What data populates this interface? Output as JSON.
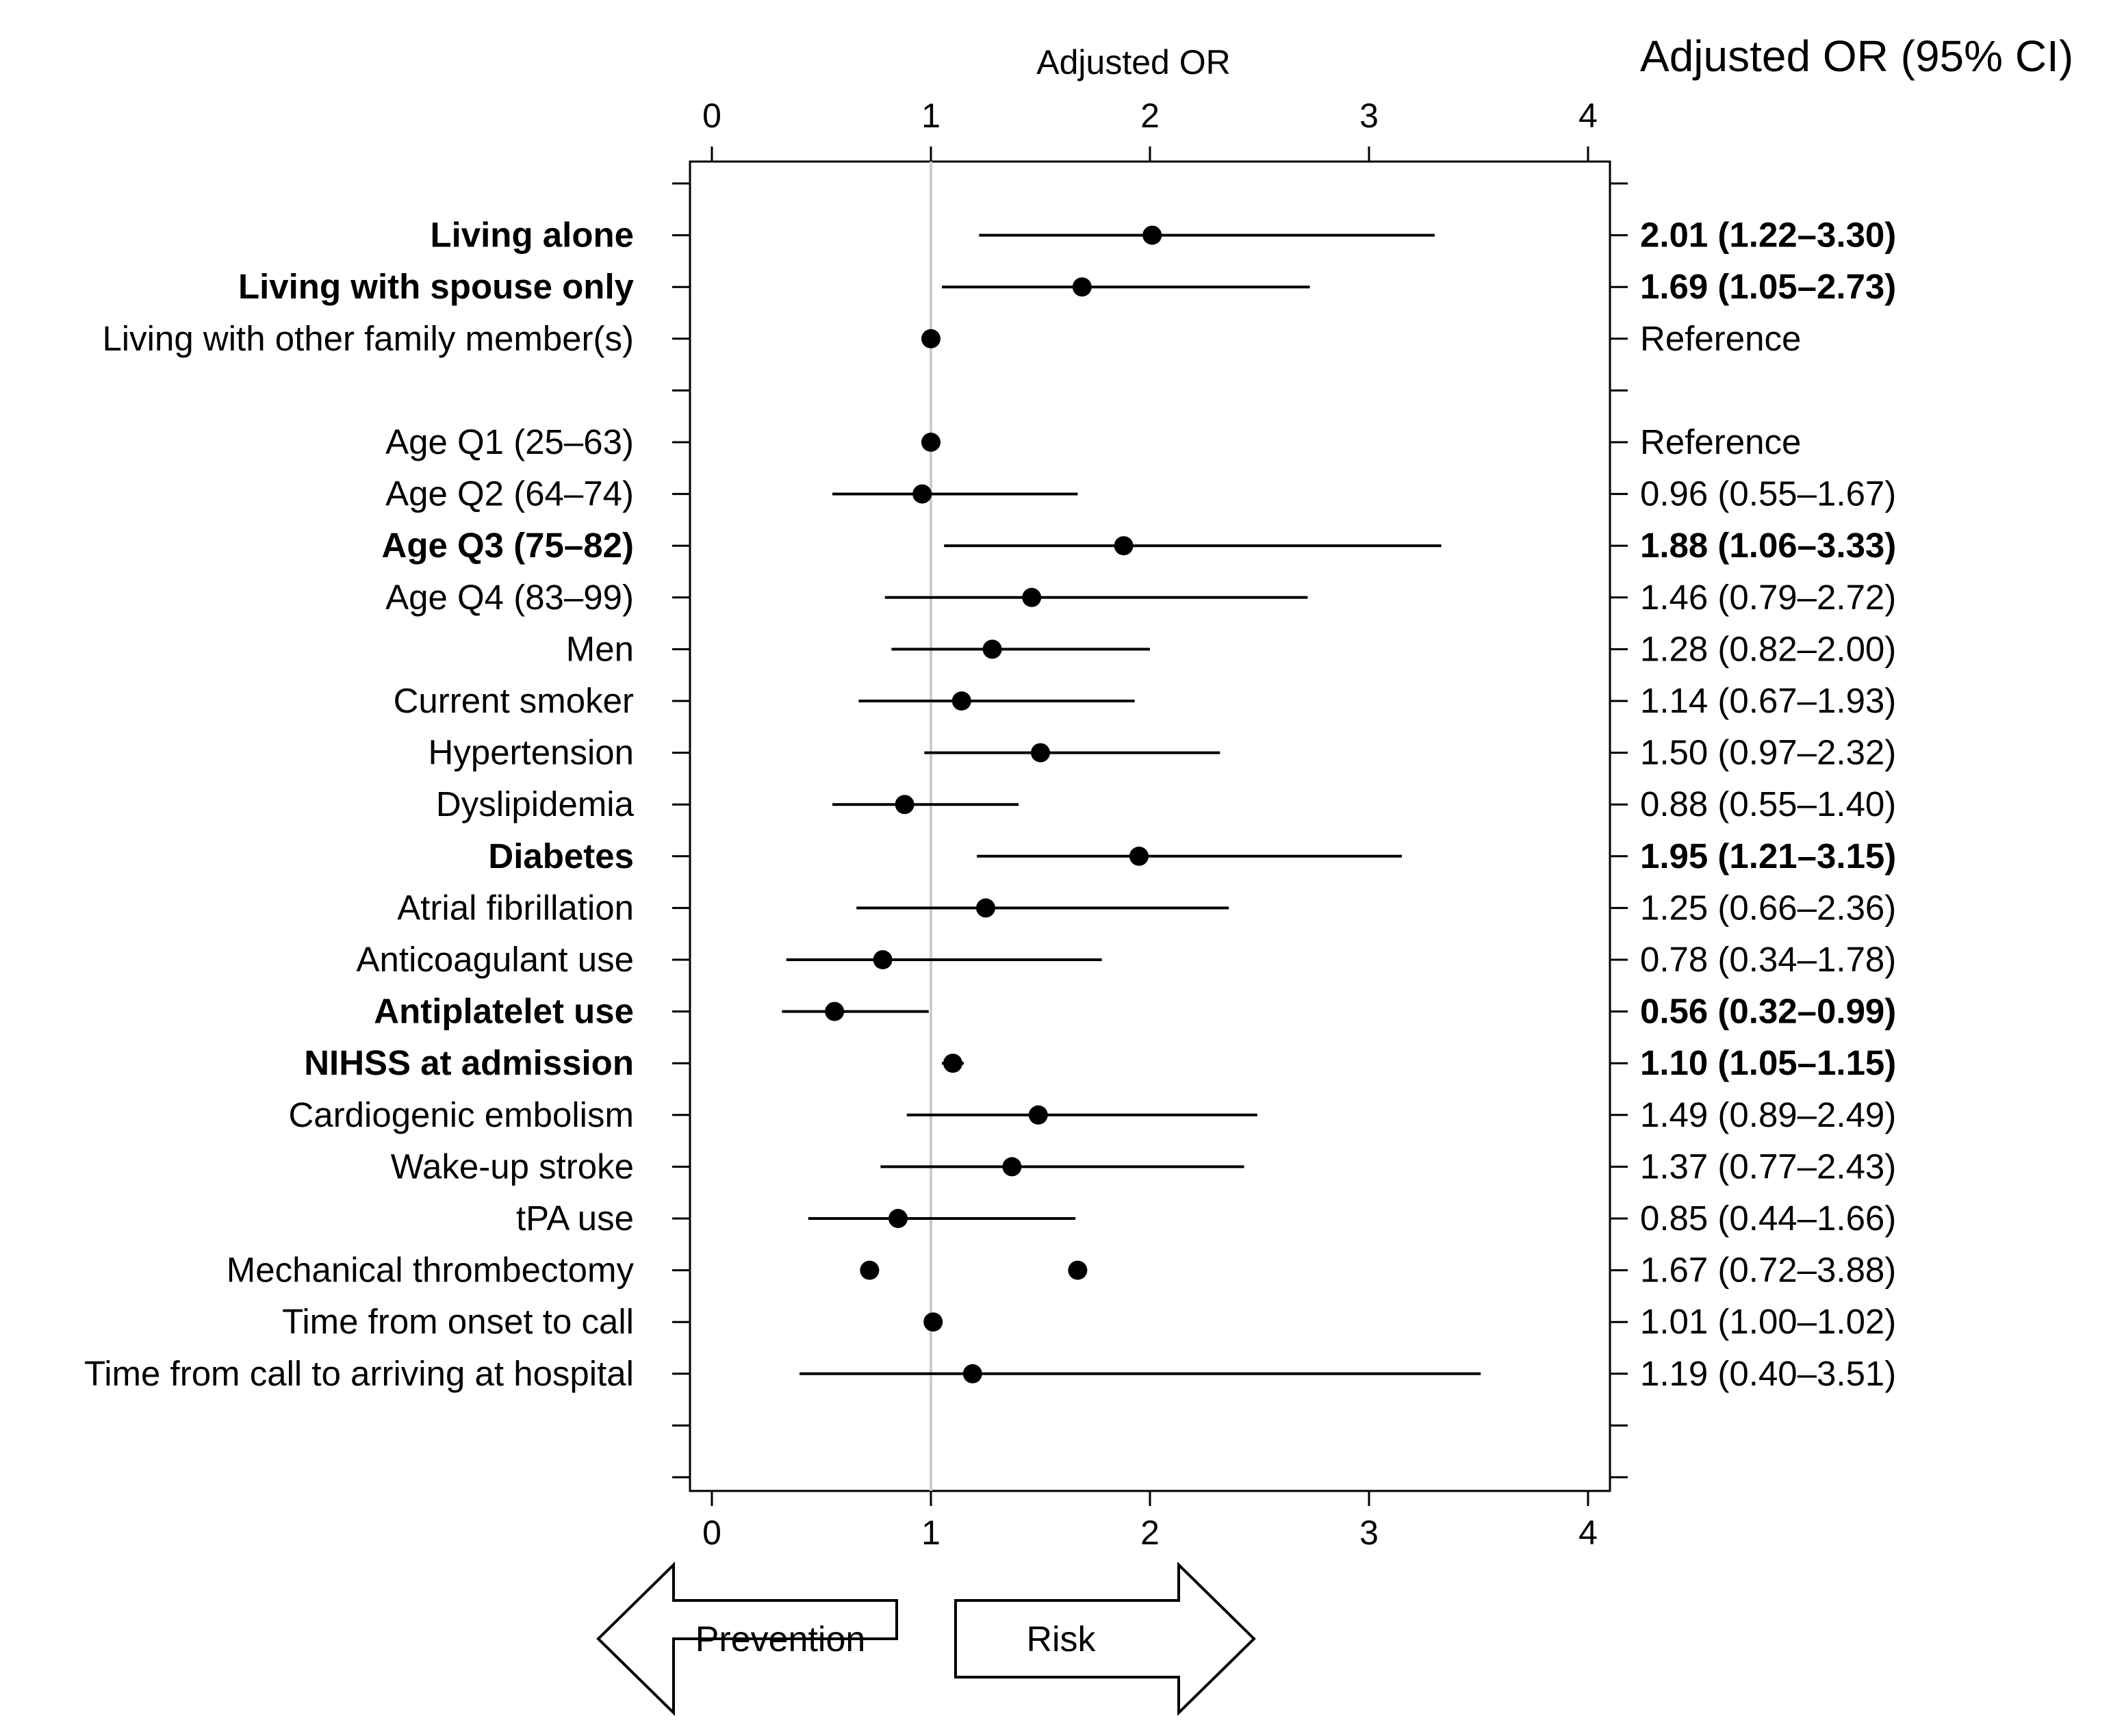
{
  "chart_data": {
    "type": "forest",
    "title": "Adjusted OR",
    "table_header": "Adjusted OR (95% CI)",
    "xlim": [
      0,
      4
    ],
    "ticks": [
      0,
      1,
      2,
      3,
      4
    ],
    "tick_labels": [
      "0",
      "1",
      "2",
      "3",
      "4"
    ],
    "reference_value": 1,
    "arrows": {
      "left": "Prevention",
      "right": "Risk"
    },
    "rows": [
      {
        "label": "",
        "spacer": true
      },
      {
        "label": "Living alone",
        "or": 2.01,
        "lo": 1.22,
        "hi": 3.3,
        "text": "2.01 (1.22–3.30)",
        "bold": true
      },
      {
        "label": "Living with spouse only",
        "or": 1.69,
        "lo": 1.05,
        "hi": 2.73,
        "text": "1.69 (1.05–2.73)",
        "bold": true
      },
      {
        "label": "Living with other family member(s)",
        "or": 1.0,
        "text": "Reference",
        "bold": false
      },
      {
        "label": "",
        "spacer": true
      },
      {
        "label": "Age Q1 (25–63)",
        "or": 1.0,
        "text": "Reference",
        "bold": false
      },
      {
        "label": "Age Q2 (64–74)",
        "or": 0.96,
        "lo": 0.55,
        "hi": 1.67,
        "text": "0.96 (0.55–1.67)",
        "bold": false
      },
      {
        "label": "Age Q3 (75–82)",
        "or": 1.88,
        "lo": 1.06,
        "hi": 3.33,
        "text": "1.88 (1.06–3.33)",
        "bold": true
      },
      {
        "label": "Age Q4 (83–99)",
        "or": 1.46,
        "lo": 0.79,
        "hi": 2.72,
        "text": "1.46 (0.79–2.72)",
        "bold": false
      },
      {
        "label": "Men",
        "or": 1.28,
        "lo": 0.82,
        "hi": 2.0,
        "text": "1.28 (0.82–2.00)",
        "bold": false
      },
      {
        "label": "Current smoker",
        "or": 1.14,
        "lo": 0.67,
        "hi": 1.93,
        "text": "1.14 (0.67–1.93)",
        "bold": false
      },
      {
        "label": "Hypertension",
        "or": 1.5,
        "lo": 0.97,
        "hi": 2.32,
        "text": "1.50 (0.97–2.32)",
        "bold": false
      },
      {
        "label": "Dyslipidemia",
        "or": 0.88,
        "lo": 0.55,
        "hi": 1.4,
        "text": "0.88 (0.55–1.40)",
        "bold": false
      },
      {
        "label": "Diabetes",
        "or": 1.95,
        "lo": 1.21,
        "hi": 3.15,
        "text": "1.95 (1.21–3.15)",
        "bold": true
      },
      {
        "label": "Atrial fibrillation",
        "or": 1.25,
        "lo": 0.66,
        "hi": 2.36,
        "text": "1.25 (0.66–2.36)",
        "bold": false
      },
      {
        "label": "Anticoagulant use",
        "or": 0.78,
        "lo": 0.34,
        "hi": 1.78,
        "text": "0.78 (0.34–1.78)",
        "bold": false
      },
      {
        "label": "Antiplatelet use",
        "or": 0.56,
        "lo": 0.32,
        "hi": 0.99,
        "text": "0.56 (0.32–0.99)",
        "bold": true
      },
      {
        "label": "NIHSS at admission",
        "or": 1.1,
        "lo": 1.05,
        "hi": 1.15,
        "text": "1.10 (1.05–1.15)",
        "bold": true
      },
      {
        "label": "Cardiogenic embolism",
        "or": 1.49,
        "lo": 0.89,
        "hi": 2.49,
        "text": "1.49 (0.89–2.49)",
        "bold": false
      },
      {
        "label": "Wake-up stroke",
        "or": 1.37,
        "lo": 0.77,
        "hi": 2.43,
        "text": "1.37 (0.77–2.43)",
        "bold": false
      },
      {
        "label": "tPA use",
        "or": 0.85,
        "lo": 0.44,
        "hi": 1.66,
        "text": "0.85 (0.44–1.66)",
        "bold": false
      },
      {
        "label": "Mechanical thrombectomy",
        "or": 1.67,
        "extra_point": 0.72,
        "text": "1.67 (0.72–3.88)",
        "bold": false
      },
      {
        "label": "Time from onset to call",
        "or": 1.01,
        "lo": 1.0,
        "hi": 1.02,
        "text": "1.01 (1.00–1.02)",
        "bold": false
      },
      {
        "label": "Time from call to arriving at hospital",
        "or": 1.19,
        "lo": 0.4,
        "hi": 3.51,
        "text": "1.19 (0.40–3.51)",
        "bold": false
      },
      {
        "label": "",
        "spacer": true
      },
      {
        "label": "",
        "spacer": true
      }
    ]
  },
  "colors": {
    "ink": "#000000",
    "reference_line": "#cccccc",
    "background": "#ffffff"
  }
}
